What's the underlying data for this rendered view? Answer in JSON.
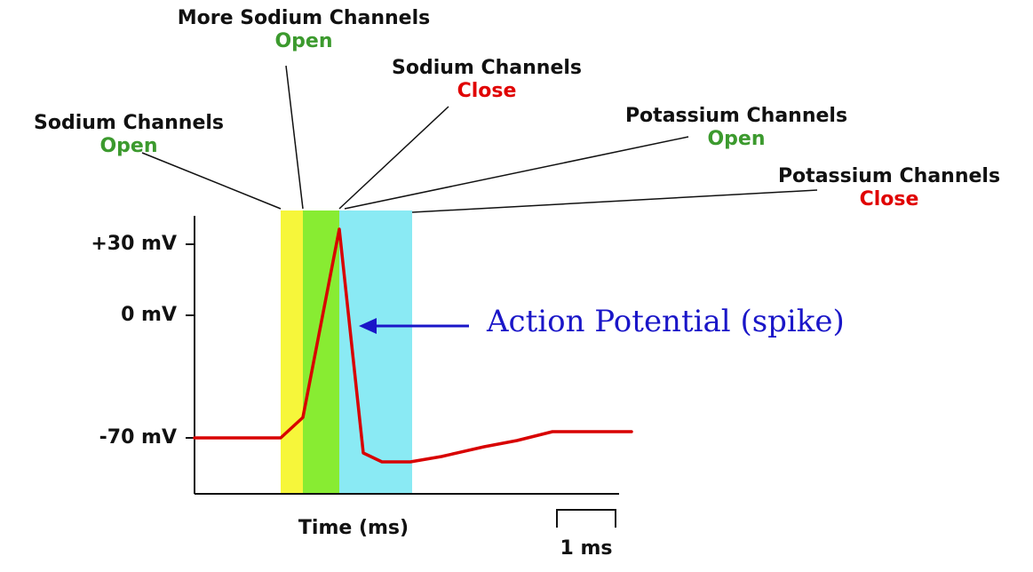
{
  "colors": {
    "yellow_band": "#f6f63a",
    "green_band": "#88ec32",
    "cyan_band": "#8aeaf4",
    "trace": "#d80000",
    "open_text": "#3c9a2e",
    "close_text": "#e00000",
    "annotation": "#1a16c8",
    "ink": "#111111"
  },
  "y_axis": {
    "ticks": [
      "+30 mV",
      "0 mV",
      "-70 mV"
    ]
  },
  "x_axis": {
    "label": "Time (ms)",
    "scale_bar": "1 ms"
  },
  "phases": [
    {
      "title": "Sodium Channels",
      "state": "Open"
    },
    {
      "title": "More Sodium Channels",
      "state": "Open"
    },
    {
      "title": "Sodium Channels",
      "state": "Close"
    },
    {
      "title": "Potassium Channels",
      "state": "Open"
    },
    {
      "title": "Potassium Channels",
      "state": "Close"
    }
  ],
  "annotation": "Action Potential (spike)"
}
